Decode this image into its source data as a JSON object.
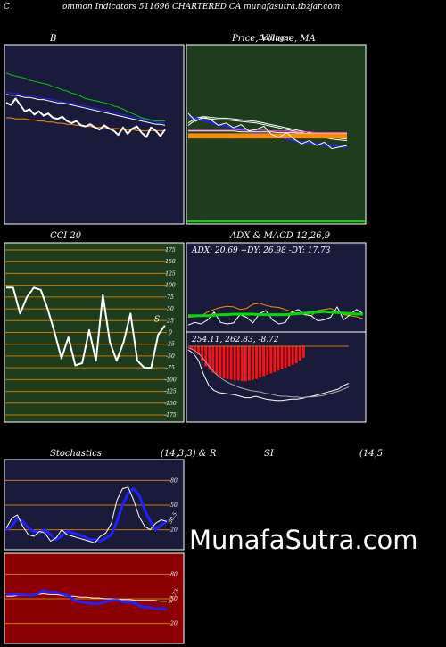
{
  "header": {
    "left": "C",
    "text": "ommon  Indicators 511696  CHARTERED CA munafasutra.tbzjar.com"
  },
  "watermark": "MunafaSutra.com",
  "chart_data": [
    {
      "id": "bollinger",
      "type": "line",
      "title": "B",
      "ylim": [
        0,
        100
      ],
      "series": [
        {
          "color": "#00cc00",
          "values": [
            82,
            80,
            79,
            78,
            77,
            75,
            74,
            73,
            72,
            71,
            69,
            68,
            66,
            65,
            63,
            62,
            60,
            58,
            57,
            56,
            55,
            54,
            53,
            51,
            50,
            48,
            46,
            44,
            42,
            40,
            39,
            38,
            37,
            37,
            37
          ]
        },
        {
          "color": "#ffffff",
          "values": [
            62,
            61,
            61,
            60,
            59,
            59,
            58,
            57,
            57,
            56,
            55,
            54,
            54,
            53,
            52,
            51,
            50,
            49,
            48,
            47,
            46,
            45,
            44,
            43,
            42,
            41,
            40,
            39,
            38,
            37,
            36,
            35,
            34,
            34,
            33
          ]
        },
        {
          "color": "#2222ff",
          "values": [
            64,
            63,
            63,
            62,
            61,
            61,
            60,
            59,
            58,
            58,
            57,
            56,
            55,
            54,
            54,
            53,
            52,
            51,
            50,
            49,
            48,
            47,
            46,
            45,
            44,
            43,
            42,
            41,
            40,
            39,
            38,
            37,
            36,
            35,
            35
          ]
        },
        {
          "color": "#ff8c00",
          "values": [
            40,
            40,
            39,
            39,
            39,
            38,
            38,
            37,
            37,
            36,
            36,
            35,
            35,
            34,
            34,
            33,
            33,
            32,
            32,
            31,
            31,
            31,
            30,
            30,
            30,
            29,
            29,
            29,
            28,
            28,
            28,
            28,
            28,
            28,
            28
          ]
        },
        {
          "color": "#ffffff",
          "width": 2,
          "values": [
            54,
            52,
            58,
            52,
            46,
            48,
            43,
            46,
            42,
            44,
            40,
            39,
            41,
            37,
            35,
            37,
            33,
            32,
            34,
            31,
            29,
            33,
            30,
            28,
            24,
            31,
            25,
            30,
            32,
            26,
            22,
            31,
            28,
            23,
            29
          ]
        }
      ]
    },
    {
      "id": "price-ma",
      "type": "line",
      "title": "Price,  Volume,  MA",
      "title_overlay": "Bollinger",
      "ylim": [
        0,
        100
      ],
      "series": [
        {
          "color": "#ffffff",
          "values": [
            55,
            62,
            64,
            63,
            62,
            62,
            61,
            60,
            59,
            58,
            56,
            54,
            52,
            50,
            48,
            46,
            44,
            42,
            40,
            38,
            37,
            36
          ]
        },
        {
          "color": "#ffffff",
          "values": [
            58,
            64,
            66,
            65,
            64,
            64,
            63,
            62,
            61,
            60,
            58,
            56,
            54,
            52,
            50,
            48,
            46,
            44,
            42,
            40,
            39,
            38
          ]
        },
        {
          "color": "#2222ff",
          "width": 2,
          "values": [
            66,
            64,
            61,
            58,
            56,
            54,
            52,
            50,
            48,
            46,
            44,
            42,
            40,
            38,
            36,
            34,
            33,
            32,
            31,
            30,
            29,
            28
          ]
        },
        {
          "color": "#ff44ff",
          "values": [
            50,
            50,
            50,
            50,
            50,
            50,
            50,
            49,
            49,
            49,
            49,
            48,
            48,
            48,
            47,
            47,
            47,
            46,
            46,
            46,
            46,
            46
          ]
        },
        {
          "color": "#ffffff",
          "values": [
            48,
            48,
            48,
            48,
            48,
            48,
            48,
            47,
            47,
            47,
            47,
            47,
            46,
            46,
            46,
            45,
            45,
            45,
            45,
            45,
            45,
            45
          ]
        },
        {
          "color": "#ff8c00",
          "width": 4,
          "values": [
            41,
            41,
            41,
            41,
            41,
            41,
            41,
            41,
            41,
            41,
            41,
            41,
            41,
            41,
            41,
            41,
            41,
            41,
            41,
            41,
            41,
            41
          ]
        },
        {
          "color": "#ff8c00",
          "width": 2,
          "values": [
            44,
            44,
            44,
            44,
            44,
            44,
            44,
            44,
            44,
            44,
            44,
            44,
            44,
            44,
            44,
            44,
            44,
            44,
            44,
            44,
            44,
            44
          ]
        },
        {
          "color": "#ffffff",
          "values": [
            70,
            60,
            66,
            62,
            55,
            58,
            52,
            56,
            48,
            50,
            54,
            44,
            40,
            46,
            38,
            32,
            36,
            30,
            34,
            26,
            28,
            30
          ]
        }
      ]
    },
    {
      "id": "cci",
      "type": "line",
      "title": "CCI 20",
      "ylim": [
        -175,
        175
      ],
      "ticks": [
        175,
        150,
        125,
        100,
        75,
        50,
        25,
        0,
        -25,
        -50,
        -75,
        -100,
        -125,
        -150,
        -175
      ],
      "series": [
        {
          "color": "#ffffff",
          "width": 2,
          "values": [
            95,
            95,
            40,
            75,
            95,
            90,
            50,
            0,
            -55,
            -10,
            -70,
            -65,
            5,
            -60,
            80,
            -20,
            -60,
            -20,
            40,
            -60,
            -75,
            -75,
            -5,
            15
          ]
        }
      ],
      "end_label": "S"
    },
    {
      "id": "adx",
      "type": "line",
      "title": "ADX  & MACD 12,26,9",
      "readout": "ADX: 20.69  +DY: 26.98  -DY: 17.73",
      "ylim": [
        0,
        100
      ],
      "series": [
        {
          "color": "#ff8c00",
          "values": [
            25,
            26,
            28,
            35,
            40,
            44,
            46,
            45,
            40,
            42,
            50,
            52,
            48,
            45,
            44,
            40,
            36,
            32,
            30,
            28,
            38,
            40,
            42,
            36,
            30,
            28,
            26,
            22
          ]
        },
        {
          "color": "#ffffff",
          "values": [
            10,
            15,
            12,
            20,
            35,
            15,
            12,
            14,
            30,
            25,
            14,
            32,
            38,
            20,
            12,
            15,
            35,
            40,
            30,
            28,
            18,
            20,
            25,
            45,
            20,
            30,
            40,
            32
          ]
        },
        {
          "color": "#00dd00",
          "width": 3,
          "values": [
            28,
            28,
            28,
            28,
            29,
            30,
            30,
            31,
            31,
            31,
            31,
            30,
            30,
            30,
            30,
            30,
            31,
            32,
            33,
            34,
            35,
            36,
            35,
            34,
            33,
            32,
            31,
            31
          ]
        }
      ]
    },
    {
      "id": "macd",
      "type": "bar",
      "readout": "254.11,  262.83,  -8.72",
      "ylim": [
        -100,
        10
      ],
      "histogram": [
        -4,
        -8,
        -12,
        -20,
        -28,
        -33,
        -37,
        -40,
        -43,
        -45,
        -46,
        -47,
        -48,
        -48,
        -49,
        -49,
        -48,
        -47,
        -46,
        -44,
        -42,
        -40,
        -38,
        -36,
        -34,
        -32,
        -30,
        -28,
        -26,
        -24,
        -20,
        -16
      ],
      "series": [
        {
          "color": "#ffffff",
          "values": [
            -5,
            -10,
            -20,
            -40,
            -55,
            -62,
            -65,
            -66,
            -67,
            -68,
            -70,
            -72,
            -72,
            -70,
            -72,
            -74,
            -75,
            -76,
            -76,
            -75,
            -74,
            -74,
            -73,
            -71,
            -70,
            -68,
            -66,
            -64,
            -62,
            -60,
            -55,
            -52
          ]
        },
        {
          "color": "#aaaaaa",
          "values": [
            -2,
            -5,
            -10,
            -18,
            -28,
            -36,
            -43,
            -48,
            -52,
            -55,
            -58,
            -60,
            -62,
            -63,
            -64,
            -66,
            -67,
            -69,
            -70,
            -70,
            -71,
            -71,
            -72,
            -71,
            -71,
            -70,
            -69,
            -67,
            -65,
            -63,
            -60,
            -57
          ]
        }
      ]
    },
    {
      "id": "stochastics",
      "type": "line",
      "title": "Stochastics",
      "title_right": "(14,3,3) & R",
      "ylim": [
        0,
        100
      ],
      "ticks": [
        80,
        50,
        20
      ],
      "end_label": "30.5",
      "series": [
        {
          "color": "#2222ff",
          "width": 3,
          "values": [
            20,
            24,
            34,
            30,
            22,
            18,
            16,
            20,
            14,
            8,
            12,
            18,
            16,
            14,
            12,
            8,
            8,
            6,
            10,
            14,
            30,
            50,
            64,
            70,
            62,
            44,
            30,
            20,
            26,
            30
          ]
        },
        {
          "color": "#ffffff",
          "values": [
            22,
            34,
            38,
            24,
            14,
            12,
            18,
            16,
            6,
            10,
            20,
            14,
            12,
            10,
            8,
            6,
            4,
            12,
            16,
            28,
            56,
            70,
            72,
            56,
            36,
            24,
            20,
            28,
            32,
            30
          ]
        }
      ]
    },
    {
      "id": "rsi",
      "type": "line",
      "title": "SI",
      "title_right": "(14,5",
      "ylim": [
        0,
        100
      ],
      "ticks": [
        80,
        50,
        20
      ],
      "end_label": "47.73",
      "series": [
        {
          "color": "#ffffff",
          "values": [
            53,
            53,
            54,
            54,
            55,
            55,
            56,
            55,
            55,
            54,
            53,
            53,
            52,
            52,
            51,
            51,
            50,
            50,
            49,
            49,
            49,
            48,
            48,
            48,
            48,
            47,
            47
          ]
        },
        {
          "color": "#2222ff",
          "width": 3,
          "values": [
            55,
            56,
            55,
            55,
            54,
            56,
            60,
            58,
            58,
            56,
            54,
            48,
            46,
            45,
            44,
            44,
            46,
            48,
            48,
            46,
            46,
            44,
            40,
            40,
            38,
            38,
            37
          ]
        }
      ]
    }
  ]
}
